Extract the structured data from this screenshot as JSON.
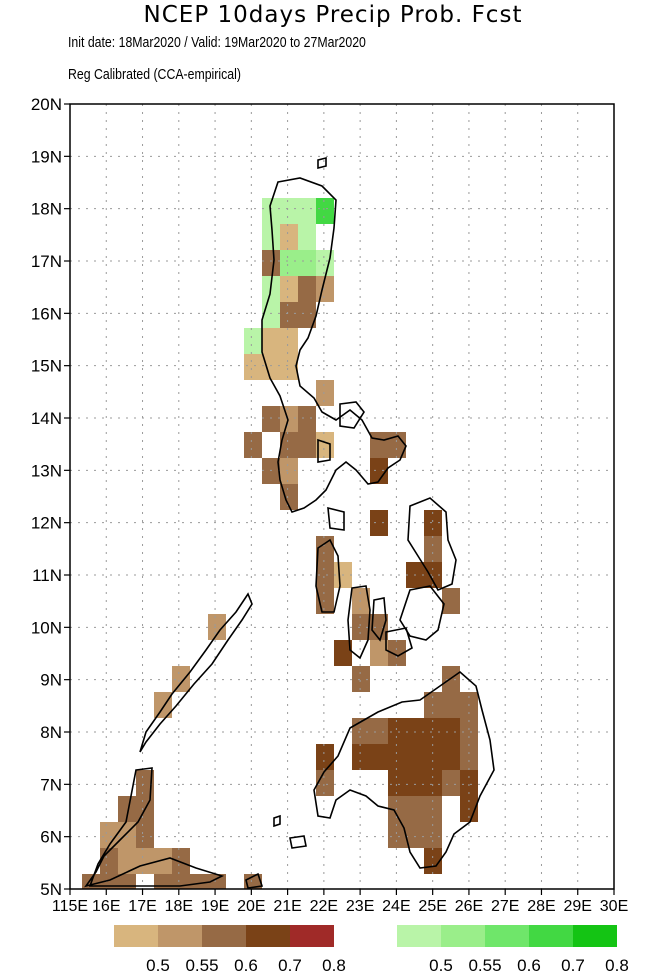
{
  "header": {
    "title": "NCEP 10days Precip Prob. Fcst",
    "subtitle_dates": "Init date: 18Mar2020 / Valid: 19Mar2020 to 27Mar2020",
    "subtitle_method": "Reg Calibrated (CCA-empirical)"
  },
  "map": {
    "lon_range": [
      115,
      130
    ],
    "lat_range": [
      5,
      20
    ],
    "grid": "dotted, 1 degree",
    "y_tick_labels": [
      "5N",
      "6N",
      "7N",
      "8N",
      "9N",
      "10N",
      "11N",
      "12N",
      "13N",
      "14N",
      "15N",
      "16N",
      "17N",
      "18N",
      "19N",
      "20N"
    ],
    "x_tick_labels": [
      "115E",
      "16E",
      "17E",
      "18E",
      "19E",
      "20E",
      "21E",
      "22E",
      "23E",
      "24E",
      "25E",
      "26E",
      "27E",
      "28E",
      "29E",
      "30E"
    ],
    "colors": {
      "below_0.5": "#d8b57e",
      "below_0.55": "#bf9669",
      "below_0.6": "#966a45",
      "below_0.7": "#7a4217",
      "below_0.8": "#a02a28",
      "above_0.5": "#b9f4a8",
      "above_0.55": "#9aee8a",
      "above_0.6": "#6fe66a",
      "above_0.7": "#42d843",
      "above_0.8": "#14c414",
      "coastline": "#000000"
    }
  },
  "legend": {
    "below_normal": {
      "labels": [
        "0.5",
        "0.55",
        "0.6",
        "0.7",
        "0.8"
      ],
      "colors": [
        "#d8b57e",
        "#bf9669",
        "#966a45",
        "#7a4217",
        "#a02a28"
      ]
    },
    "above_normal": {
      "labels": [
        "0.5",
        "0.55",
        "0.6",
        "0.7",
        "0.8"
      ],
      "colors": [
        "#b9f4a8",
        "#9aee8a",
        "#6fe66a",
        "#42d843",
        "#14c414"
      ]
    }
  }
}
